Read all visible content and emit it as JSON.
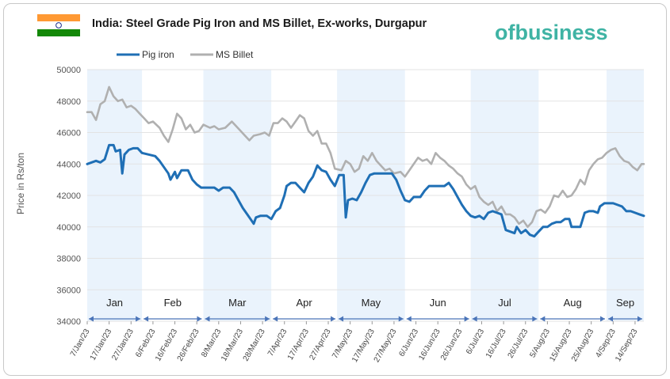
{
  "chart_data": {
    "type": "line",
    "title": "India: Steel Grade Pig Iron and MS Billet, Ex-works, Durgapur",
    "ylabel": "Price in Rs/ton",
    "xlabel": "",
    "ylim": [
      34000,
      50000
    ],
    "yticks": [
      34000,
      36000,
      38000,
      40000,
      42000,
      44000,
      46000,
      48000,
      50000
    ],
    "grid": true,
    "legend_position": "top-left",
    "x_start": "2023-01-07",
    "x_end": "2023-09-18",
    "x_tick_labels": [
      "7/Jan/23",
      "17/Jan/23",
      "27/Jan/23",
      "6/Feb/23",
      "16/Feb/23",
      "26/Feb/23",
      "8/Mar/23",
      "18/Mar/23",
      "28/Mar/23",
      "7/Apr/23",
      "17/Apr/23",
      "27/Apr/23",
      "7/May/23",
      "17/May/23",
      "27/May/23",
      "6/Jun/23",
      "16/Jun/23",
      "26/Jun/23",
      "6/Jul/23",
      "16/Jul/23",
      "26/Jul/23",
      "5/Aug/23",
      "15/Aug/23",
      "25/Aug/23",
      "4/Sep/23",
      "14/Sep/23"
    ],
    "months": [
      {
        "label": "Jan",
        "start": "2023-01-07",
        "end": "2023-02-01",
        "shaded": true
      },
      {
        "label": "Feb",
        "start": "2023-02-01",
        "end": "2023-03-01",
        "shaded": false
      },
      {
        "label": "Mar",
        "start": "2023-03-01",
        "end": "2023-04-01",
        "shaded": true
      },
      {
        "label": "Apr",
        "start": "2023-04-01",
        "end": "2023-05-01",
        "shaded": false
      },
      {
        "label": "May",
        "start": "2023-05-01",
        "end": "2023-06-01",
        "shaded": true
      },
      {
        "label": "Jun",
        "start": "2023-06-01",
        "end": "2023-07-01",
        "shaded": false
      },
      {
        "label": "Jul",
        "start": "2023-07-01",
        "end": "2023-08-01",
        "shaded": true
      },
      {
        "label": "Aug",
        "start": "2023-08-01",
        "end": "2023-09-01",
        "shaded": false
      },
      {
        "label": "Sep",
        "start": "2023-09-01",
        "end": "2023-09-18",
        "shaded": true
      }
    ],
    "series": [
      {
        "name": "Pig iron",
        "color": "#1f6fb5",
        "points": [
          [
            "2023-01-07",
            44000
          ],
          [
            "2023-01-09",
            44100
          ],
          [
            "2023-01-11",
            44200
          ],
          [
            "2023-01-13",
            44100
          ],
          [
            "2023-01-15",
            44300
          ],
          [
            "2023-01-17",
            45200
          ],
          [
            "2023-01-19",
            45200
          ],
          [
            "2023-01-20",
            44800
          ],
          [
            "2023-01-22",
            44900
          ],
          [
            "2023-01-23",
            43400
          ],
          [
            "2023-01-24",
            44600
          ],
          [
            "2023-01-26",
            44900
          ],
          [
            "2023-01-28",
            45000
          ],
          [
            "2023-01-30",
            45000
          ],
          [
            "2023-02-01",
            44700
          ],
          [
            "2023-02-04",
            44600
          ],
          [
            "2023-02-07",
            44500
          ],
          [
            "2023-02-09",
            44200
          ],
          [
            "2023-02-11",
            43800
          ],
          [
            "2023-02-13",
            43400
          ],
          [
            "2023-02-14",
            43000
          ],
          [
            "2023-02-16",
            43500
          ],
          [
            "2023-02-17",
            43100
          ],
          [
            "2023-02-19",
            43600
          ],
          [
            "2023-02-22",
            43600
          ],
          [
            "2023-02-24",
            43000
          ],
          [
            "2023-02-26",
            42700
          ],
          [
            "2023-02-28",
            42500
          ],
          [
            "2023-03-03",
            42500
          ],
          [
            "2023-03-06",
            42500
          ],
          [
            "2023-03-08",
            42300
          ],
          [
            "2023-03-10",
            42500
          ],
          [
            "2023-03-13",
            42500
          ],
          [
            "2023-03-15",
            42200
          ],
          [
            "2023-03-17",
            41700
          ],
          [
            "2023-03-19",
            41200
          ],
          [
            "2023-03-21",
            40800
          ],
          [
            "2023-03-23",
            40400
          ],
          [
            "2023-03-24",
            40200
          ],
          [
            "2023-03-25",
            40600
          ],
          [
            "2023-03-27",
            40700
          ],
          [
            "2023-03-30",
            40700
          ],
          [
            "2023-04-01",
            40500
          ],
          [
            "2023-04-03",
            41000
          ],
          [
            "2023-04-05",
            41200
          ],
          [
            "2023-04-07",
            42000
          ],
          [
            "2023-04-08",
            42600
          ],
          [
            "2023-04-10",
            42800
          ],
          [
            "2023-04-12",
            42800
          ],
          [
            "2023-04-14",
            42500
          ],
          [
            "2023-04-16",
            42200
          ],
          [
            "2023-04-18",
            42800
          ],
          [
            "2023-04-20",
            43200
          ],
          [
            "2023-04-22",
            43900
          ],
          [
            "2023-04-24",
            43600
          ],
          [
            "2023-04-26",
            43500
          ],
          [
            "2023-04-28",
            43000
          ],
          [
            "2023-04-30",
            42600
          ],
          [
            "2023-05-02",
            43300
          ],
          [
            "2023-05-04",
            43300
          ],
          [
            "2023-05-05",
            40600
          ],
          [
            "2023-05-06",
            41700
          ],
          [
            "2023-05-08",
            41800
          ],
          [
            "2023-05-10",
            41700
          ],
          [
            "2023-05-12",
            42200
          ],
          [
            "2023-05-14",
            42800
          ],
          [
            "2023-05-16",
            43300
          ],
          [
            "2023-05-18",
            43400
          ],
          [
            "2023-05-22",
            43400
          ],
          [
            "2023-05-26",
            43400
          ],
          [
            "2023-05-28",
            43000
          ],
          [
            "2023-05-30",
            42300
          ],
          [
            "2023-06-01",
            41700
          ],
          [
            "2023-06-03",
            41600
          ],
          [
            "2023-06-05",
            41900
          ],
          [
            "2023-06-08",
            41900
          ],
          [
            "2023-06-10",
            42300
          ],
          [
            "2023-06-12",
            42600
          ],
          [
            "2023-06-15",
            42600
          ],
          [
            "2023-06-19",
            42600
          ],
          [
            "2023-06-21",
            42800
          ],
          [
            "2023-06-23",
            42400
          ],
          [
            "2023-06-25",
            41900
          ],
          [
            "2023-06-27",
            41400
          ],
          [
            "2023-06-29",
            41000
          ],
          [
            "2023-07-01",
            40700
          ],
          [
            "2023-07-03",
            40600
          ],
          [
            "2023-07-05",
            40700
          ],
          [
            "2023-07-07",
            40500
          ],
          [
            "2023-07-09",
            40900
          ],
          [
            "2023-07-11",
            41000
          ],
          [
            "2023-07-13",
            40900
          ],
          [
            "2023-07-15",
            40800
          ],
          [
            "2023-07-17",
            39800
          ],
          [
            "2023-07-19",
            39700
          ],
          [
            "2023-07-21",
            39600
          ],
          [
            "2023-07-22",
            40000
          ],
          [
            "2023-07-24",
            39600
          ],
          [
            "2023-07-26",
            39800
          ],
          [
            "2023-07-28",
            39500
          ],
          [
            "2023-07-30",
            39400
          ],
          [
            "2023-08-01",
            39700
          ],
          [
            "2023-08-03",
            40000
          ],
          [
            "2023-08-05",
            40000
          ],
          [
            "2023-08-07",
            40200
          ],
          [
            "2023-08-09",
            40300
          ],
          [
            "2023-08-11",
            40300
          ],
          [
            "2023-08-13",
            40500
          ],
          [
            "2023-08-15",
            40500
          ],
          [
            "2023-08-16",
            40000
          ],
          [
            "2023-08-18",
            40000
          ],
          [
            "2023-08-20",
            40000
          ],
          [
            "2023-08-22",
            40900
          ],
          [
            "2023-08-24",
            41000
          ],
          [
            "2023-08-26",
            41000
          ],
          [
            "2023-08-28",
            40900
          ],
          [
            "2023-08-29",
            41300
          ],
          [
            "2023-08-31",
            41500
          ],
          [
            "2023-09-02",
            41500
          ],
          [
            "2023-09-04",
            41500
          ],
          [
            "2023-09-06",
            41400
          ],
          [
            "2023-09-08",
            41300
          ],
          [
            "2023-09-10",
            41000
          ],
          [
            "2023-09-12",
            41000
          ],
          [
            "2023-09-14",
            40900
          ],
          [
            "2023-09-16",
            40800
          ],
          [
            "2023-09-18",
            40700
          ]
        ]
      },
      {
        "name": "MS Billet",
        "color": "#b0b0b0",
        "points": [
          [
            "2023-01-07",
            47300
          ],
          [
            "2023-01-09",
            47300
          ],
          [
            "2023-01-11",
            46800
          ],
          [
            "2023-01-13",
            47800
          ],
          [
            "2023-01-15",
            48000
          ],
          [
            "2023-01-17",
            48900
          ],
          [
            "2023-01-19",
            48300
          ],
          [
            "2023-01-21",
            48000
          ],
          [
            "2023-01-23",
            48100
          ],
          [
            "2023-01-25",
            47600
          ],
          [
            "2023-01-27",
            47700
          ],
          [
            "2023-01-29",
            47500
          ],
          [
            "2023-01-31",
            47200
          ],
          [
            "2023-02-02",
            46900
          ],
          [
            "2023-02-04",
            46600
          ],
          [
            "2023-02-06",
            46700
          ],
          [
            "2023-02-09",
            46300
          ],
          [
            "2023-02-11",
            45800
          ],
          [
            "2023-02-13",
            45400
          ],
          [
            "2023-02-15",
            46200
          ],
          [
            "2023-02-17",
            47200
          ],
          [
            "2023-02-19",
            46900
          ],
          [
            "2023-02-21",
            46200
          ],
          [
            "2023-02-23",
            46500
          ],
          [
            "2023-02-25",
            46000
          ],
          [
            "2023-02-27",
            46100
          ],
          [
            "2023-03-01",
            46500
          ],
          [
            "2023-03-04",
            46300
          ],
          [
            "2023-03-06",
            46400
          ],
          [
            "2023-03-08",
            46200
          ],
          [
            "2023-03-11",
            46300
          ],
          [
            "2023-03-14",
            46700
          ],
          [
            "2023-03-16",
            46400
          ],
          [
            "2023-03-18",
            46100
          ],
          [
            "2023-03-20",
            45800
          ],
          [
            "2023-03-22",
            45500
          ],
          [
            "2023-03-24",
            45800
          ],
          [
            "2023-03-27",
            45900
          ],
          [
            "2023-03-29",
            46000
          ],
          [
            "2023-03-31",
            45800
          ],
          [
            "2023-04-02",
            46600
          ],
          [
            "2023-04-04",
            46600
          ],
          [
            "2023-04-06",
            46900
          ],
          [
            "2023-04-08",
            46700
          ],
          [
            "2023-04-10",
            46300
          ],
          [
            "2023-04-12",
            46700
          ],
          [
            "2023-04-14",
            47100
          ],
          [
            "2023-04-16",
            46900
          ],
          [
            "2023-04-18",
            46100
          ],
          [
            "2023-04-20",
            45800
          ],
          [
            "2023-04-22",
            46100
          ],
          [
            "2023-04-24",
            45300
          ],
          [
            "2023-04-26",
            45300
          ],
          [
            "2023-04-28",
            44700
          ],
          [
            "2023-04-30",
            43700
          ],
          [
            "2023-05-03",
            43600
          ],
          [
            "2023-05-05",
            44200
          ],
          [
            "2023-05-07",
            44000
          ],
          [
            "2023-05-09",
            43500
          ],
          [
            "2023-05-11",
            43700
          ],
          [
            "2023-05-13",
            44500
          ],
          [
            "2023-05-15",
            44200
          ],
          [
            "2023-05-17",
            44700
          ],
          [
            "2023-05-19",
            44200
          ],
          [
            "2023-05-21",
            43900
          ],
          [
            "2023-05-23",
            43600
          ],
          [
            "2023-05-25",
            43700
          ],
          [
            "2023-05-27",
            43400
          ],
          [
            "2023-05-30",
            43500
          ],
          [
            "2023-06-01",
            43200
          ],
          [
            "2023-06-03",
            43600
          ],
          [
            "2023-06-05",
            44000
          ],
          [
            "2023-06-07",
            44400
          ],
          [
            "2023-06-09",
            44200
          ],
          [
            "2023-06-11",
            44300
          ],
          [
            "2023-06-13",
            44000
          ],
          [
            "2023-06-15",
            44700
          ],
          [
            "2023-06-17",
            44400
          ],
          [
            "2023-06-19",
            44200
          ],
          [
            "2023-06-21",
            43900
          ],
          [
            "2023-06-23",
            43700
          ],
          [
            "2023-06-25",
            43400
          ],
          [
            "2023-06-27",
            43200
          ],
          [
            "2023-06-29",
            42700
          ],
          [
            "2023-07-01",
            42400
          ],
          [
            "2023-07-03",
            42600
          ],
          [
            "2023-07-05",
            41900
          ],
          [
            "2023-07-07",
            41600
          ],
          [
            "2023-07-09",
            41400
          ],
          [
            "2023-07-11",
            41600
          ],
          [
            "2023-07-13",
            41000
          ],
          [
            "2023-07-15",
            41300
          ],
          [
            "2023-07-17",
            40800
          ],
          [
            "2023-07-19",
            40800
          ],
          [
            "2023-07-21",
            40600
          ],
          [
            "2023-07-23",
            40200
          ],
          [
            "2023-07-25",
            40400
          ],
          [
            "2023-07-27",
            40000
          ],
          [
            "2023-07-29",
            40300
          ],
          [
            "2023-07-31",
            41000
          ],
          [
            "2023-08-02",
            41100
          ],
          [
            "2023-08-04",
            40900
          ],
          [
            "2023-08-06",
            41300
          ],
          [
            "2023-08-08",
            42000
          ],
          [
            "2023-08-10",
            41900
          ],
          [
            "2023-08-12",
            42300
          ],
          [
            "2023-08-14",
            41900
          ],
          [
            "2023-08-16",
            42000
          ],
          [
            "2023-08-18",
            42400
          ],
          [
            "2023-08-20",
            43000
          ],
          [
            "2023-08-22",
            42700
          ],
          [
            "2023-08-24",
            43600
          ],
          [
            "2023-08-26",
            44000
          ],
          [
            "2023-08-28",
            44300
          ],
          [
            "2023-08-30",
            44400
          ],
          [
            "2023-09-01",
            44700
          ],
          [
            "2023-09-03",
            44900
          ],
          [
            "2023-09-05",
            45000
          ],
          [
            "2023-09-07",
            44500
          ],
          [
            "2023-09-09",
            44200
          ],
          [
            "2023-09-11",
            44100
          ],
          [
            "2023-09-13",
            43800
          ],
          [
            "2023-09-15",
            43600
          ],
          [
            "2023-09-17",
            44000
          ],
          [
            "2023-09-18",
            44000
          ]
        ]
      }
    ]
  },
  "logo": {
    "text": "ofbusiness",
    "color": "#3fb3a4"
  },
  "flag": {
    "saffron": "#ff9933",
    "white": "#ffffff",
    "green": "#138808",
    "chakra": "#1c2d8a"
  }
}
